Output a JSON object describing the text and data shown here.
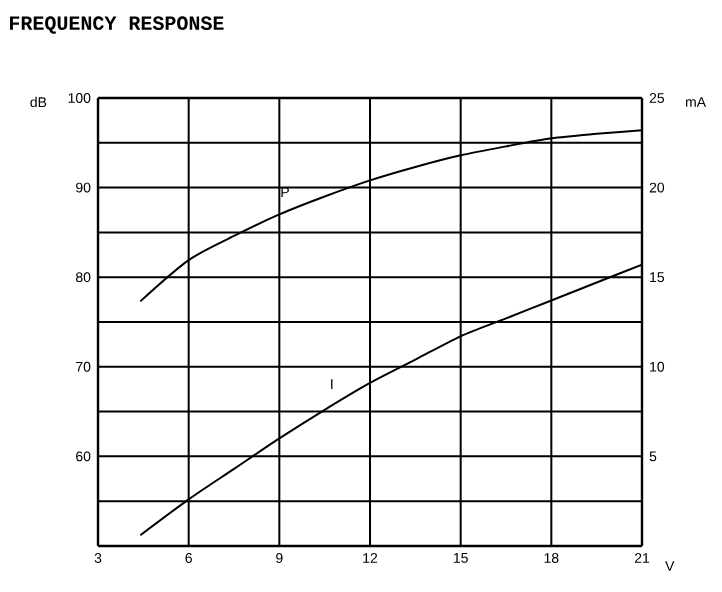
{
  "chart_data": {
    "type": "line",
    "title": "FREQUENCY RESPONSE",
    "xlabel": "V",
    "ylabel": "dB",
    "y2label": "mA",
    "x": [
      4.4,
      6,
      7.5,
      9,
      10.5,
      12,
      13.5,
      15,
      16.5,
      18,
      19.5,
      21
    ],
    "series": [
      {
        "name": "P",
        "color": "#000000",
        "values": [
          77.3,
          81.9,
          84.6,
          87,
          89,
          90.8,
          92.3,
          93.6,
          94.6,
          95.5,
          96,
          96.4
        ]
      },
      {
        "name": "I",
        "color": "#000000",
        "axis": "y2",
        "values": [
          0.6,
          2.6,
          4.3,
          6,
          7.6,
          9.1,
          10.4,
          11.7,
          12.7,
          13.7,
          14.7,
          15.7
        ]
      }
    ],
    "xlim": [
      3,
      21
    ],
    "xticks": [
      3,
      6,
      9,
      12,
      15,
      18,
      21
    ],
    "ylim": [
      50,
      100
    ],
    "yticks": [
      {
        "value": 55,
        "label": null
      },
      60,
      {
        "value": 65,
        "label": null
      },
      70,
      {
        "value": 75,
        "label": null
      },
      80,
      {
        "value": 85,
        "label": null
      },
      90,
      {
        "value": 95,
        "label": null
      },
      100
    ],
    "y2lim": [
      0,
      25
    ],
    "y2ticks": [
      5,
      10,
      15,
      20,
      25
    ],
    "grid": true,
    "marker": "none",
    "line_style": "solid"
  }
}
